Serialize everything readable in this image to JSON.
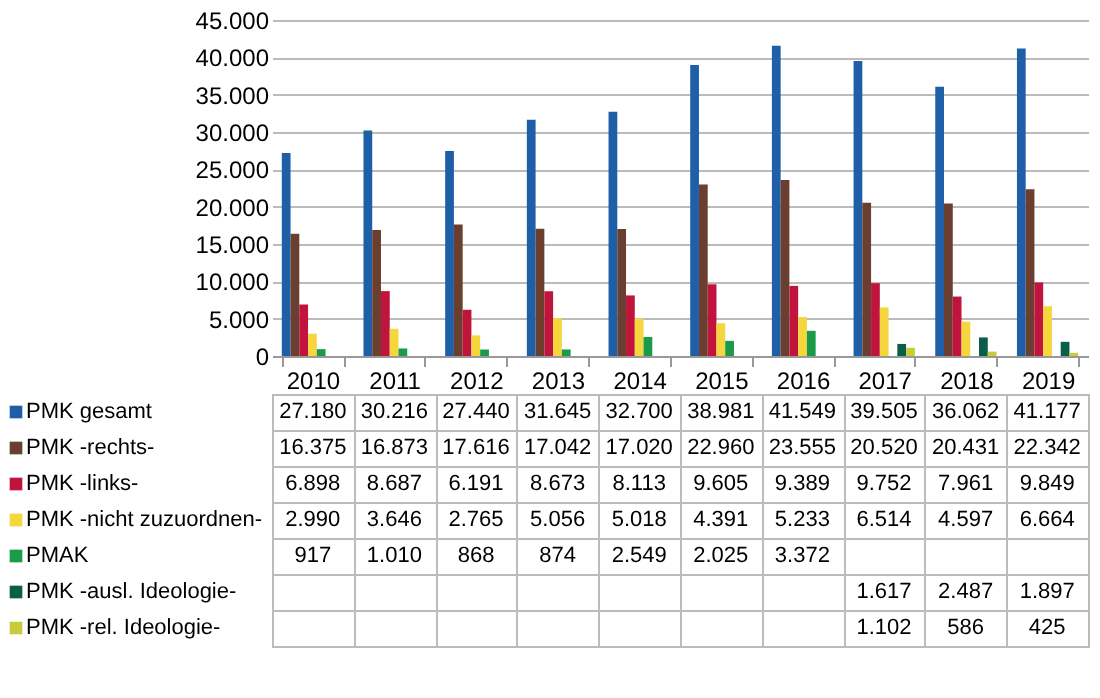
{
  "chart_data": {
    "type": "bar",
    "categories": [
      "2010",
      "2011",
      "2012",
      "2013",
      "2014",
      "2015",
      "2016",
      "2017",
      "2018",
      "2019"
    ],
    "series": [
      {
        "name": "PMK gesamt",
        "color": "#1f5fa8",
        "values": [
          27180,
          30216,
          27440,
          31645,
          32700,
          38981,
          41549,
          39505,
          36062,
          41177
        ],
        "value_labels": [
          "27.180",
          "30.216",
          "27.440",
          "31.645",
          "32.700",
          "38.981",
          "41.549",
          "39.505",
          "36.062",
          "41.177"
        ]
      },
      {
        "name": "PMK -rechts-",
        "color": "#6b3f2f",
        "values": [
          16375,
          16873,
          17616,
          17042,
          17020,
          22960,
          23555,
          20520,
          20431,
          22342
        ],
        "value_labels": [
          "16.375",
          "16.873",
          "17.616",
          "17.042",
          "17.020",
          "22.960",
          "23.555",
          "20.520",
          "20.431",
          "22.342"
        ]
      },
      {
        "name": "PMK -links-",
        "color": "#c0143c",
        "values": [
          6898,
          8687,
          6191,
          8673,
          8113,
          9605,
          9389,
          9752,
          7961,
          9849
        ],
        "value_labels": [
          "6.898",
          "8.687",
          "6.191",
          "8.673",
          "8.113",
          "9.605",
          "9.389",
          "9.752",
          "7.961",
          "9.849"
        ]
      },
      {
        "name": "PMK -nicht zuzuordnen-",
        "color": "#f5d63d",
        "values": [
          2990,
          3646,
          2765,
          5056,
          5018,
          4391,
          5233,
          6514,
          4597,
          6664
        ],
        "value_labels": [
          "2.990",
          "3.646",
          "2.765",
          "5.056",
          "5.018",
          "4.391",
          "5.233",
          "6.514",
          "4.597",
          "6.664"
        ]
      },
      {
        "name": "PMAK",
        "color": "#1a9a4a",
        "values": [
          917,
          1010,
          868,
          874,
          2549,
          2025,
          3372,
          null,
          null,
          null
        ],
        "value_labels": [
          "917",
          "1.010",
          "868",
          "874",
          "2.549",
          "2.025",
          "3.372",
          null,
          null,
          null
        ]
      },
      {
        "name": "PMK -ausl. Ideologie-",
        "color": "#0b5e48",
        "values": [
          null,
          null,
          null,
          null,
          null,
          null,
          null,
          1617,
          2487,
          1897
        ],
        "value_labels": [
          null,
          null,
          null,
          null,
          null,
          null,
          null,
          "1.617",
          "2.487",
          "1.897"
        ]
      },
      {
        "name": "PMK -rel. Ideologie-",
        "color": "#c8cc3a",
        "values": [
          null,
          null,
          null,
          null,
          null,
          null,
          null,
          1102,
          586,
          425
        ],
        "value_labels": [
          null,
          null,
          null,
          null,
          null,
          null,
          null,
          "1.102",
          "586",
          "425"
        ]
      }
    ],
    "ylim": [
      0,
      45000
    ],
    "yticks": [
      {
        "value": 0,
        "label": "0"
      },
      {
        "value": 5000,
        "label": "5.000"
      },
      {
        "value": 10000,
        "label": "10.000"
      },
      {
        "value": 15000,
        "label": "15.000"
      },
      {
        "value": 20000,
        "label": "20.000"
      },
      {
        "value": 25000,
        "label": "25.000"
      },
      {
        "value": 30000,
        "label": "30.000"
      },
      {
        "value": 35000,
        "label": "35.000"
      },
      {
        "value": 40000,
        "label": "40.000"
      },
      {
        "value": 45000,
        "label": "45.000"
      }
    ],
    "grid": "y",
    "legend": "bottom left"
  }
}
